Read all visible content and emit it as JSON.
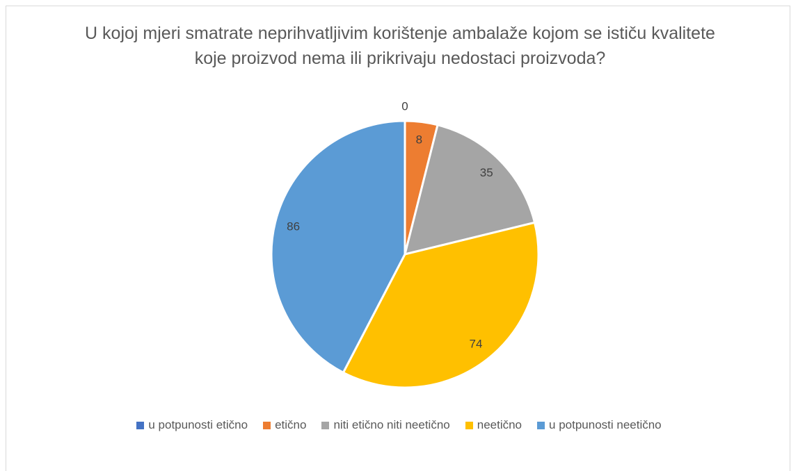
{
  "chart_data": {
    "type": "pie",
    "title": "U kojoj mjeri smatrate neprihvatljivim korištenje ambalaže kojom se ističu kvalitete koje proizvod nema ili prikrivaju nedostaci proizvoda?",
    "categories": [
      "u potpunosti etično",
      "etično",
      "niti etično niti neetično",
      "neetično",
      "u potpunosti neetično"
    ],
    "values": [
      0,
      8,
      35,
      74,
      86
    ],
    "colors": [
      "#4472c4",
      "#ed7d31",
      "#a5a5a5",
      "#ffc000",
      "#5b9bd5"
    ],
    "legend": "bottom"
  }
}
